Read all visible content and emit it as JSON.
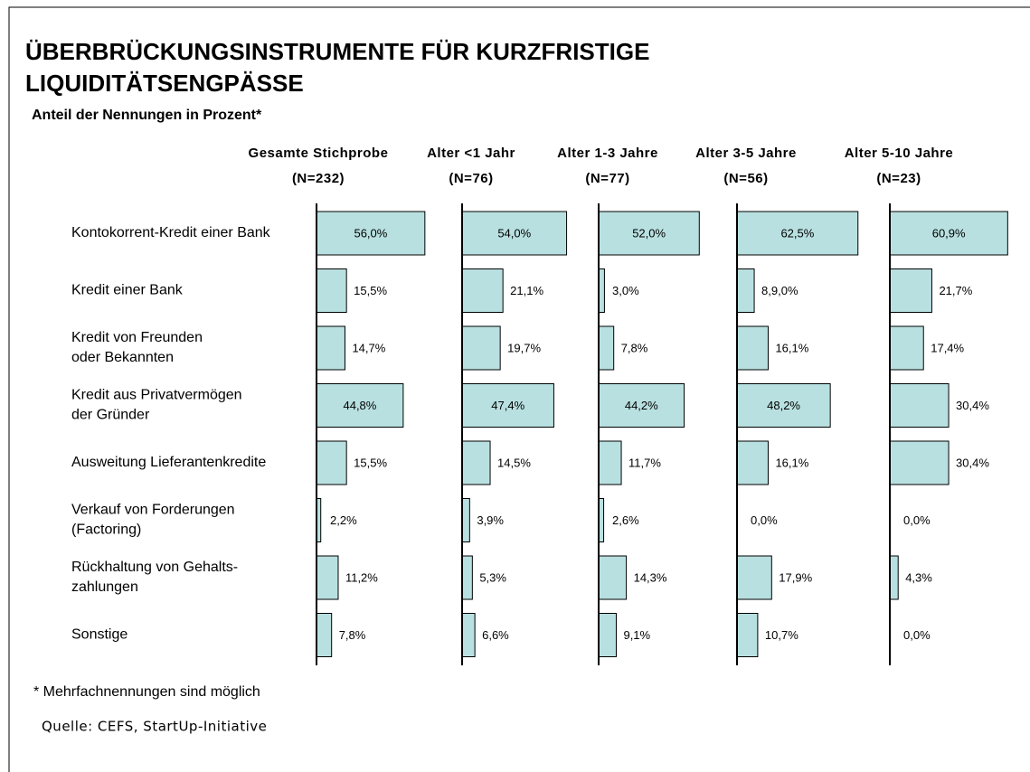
{
  "chart_data": {
    "type": "bar",
    "orientation": "horizontal",
    "title": [
      "ÜBERBRÜCKUNGSINSTRUMENTE FÜR KURZFRISTIGE",
      "LIQUIDITÄTSENGPÄSSE"
    ],
    "subtitle": "Anteil der Nennungen in Prozent*",
    "footnote": "* Mehrfachnennungen sind möglich",
    "source": "Quelle: CEFS, StartUp-Initiative",
    "color": "#b9e0e0",
    "categories": [
      [
        "Kontokorrent-Kredit einer Bank"
      ],
      [
        "Kredit einer Bank"
      ],
      [
        "Kredit von Freunden",
        "oder Bekannten"
      ],
      [
        "Kredit aus Privatvermögen",
        "der Gründer"
      ],
      [
        "Ausweitung Lieferantenkredite"
      ],
      [
        "Verkauf von Forderungen",
        "(Factoring)"
      ],
      [
        "Rückhaltung von Gehalts-",
        "zahlungen"
      ],
      [
        "Sonstige"
      ]
    ],
    "series": [
      {
        "name": [
          "Gesamte Stichprobe",
          "(N=232)"
        ],
        "values": [
          56.0,
          15.5,
          14.7,
          44.8,
          15.5,
          2.2,
          11.2,
          7.8
        ],
        "value_labels": [
          "56,0%",
          "15,5%",
          "14,7%",
          "44,8%",
          "15,5%",
          "2,2%",
          "11,2%",
          "7,8%"
        ]
      },
      {
        "name": [
          "Alter <1 Jahr",
          "(N=76)"
        ],
        "values": [
          54.0,
          21.1,
          19.7,
          47.4,
          14.5,
          3.9,
          5.3,
          6.6
        ],
        "value_labels": [
          "54,0%",
          "21,1%",
          "19,7%",
          "47,4%",
          "14,5%",
          "3,9%",
          "5,3%",
          "6,6%"
        ]
      },
      {
        "name": [
          "Alter 1-3 Jahre",
          "(N=77)"
        ],
        "values": [
          52.0,
          3.0,
          7.8,
          44.2,
          11.7,
          2.6,
          14.3,
          9.1
        ],
        "value_labels": [
          "52,0%",
          "3,0%",
          "7,8%",
          "44,2%",
          "11,7%",
          "2,6%",
          "14,3%",
          "9,1%"
        ]
      },
      {
        "name": [
          "Alter 3-5 Jahre",
          "(N=56)"
        ],
        "values": [
          62.5,
          8.9,
          16.1,
          48.2,
          16.1,
          0.0,
          17.9,
          10.7
        ],
        "value_labels": [
          "62,5%",
          "8,9,0%",
          "16,1%",
          "48,2%",
          "16,1%",
          "0,0%",
          "17,9%",
          "10,7%"
        ]
      },
      {
        "name": [
          "Alter 5-10 Jahre",
          "(N=23)"
        ],
        "values": [
          60.9,
          21.7,
          17.4,
          30.4,
          30.4,
          0.0,
          4.3,
          0.0
        ],
        "value_labels": [
          "60,9%",
          "21,7%",
          "17,4%",
          "30,4%",
          "30,4%",
          "0,0%",
          "4,3%",
          "0,0%"
        ]
      }
    ]
  }
}
